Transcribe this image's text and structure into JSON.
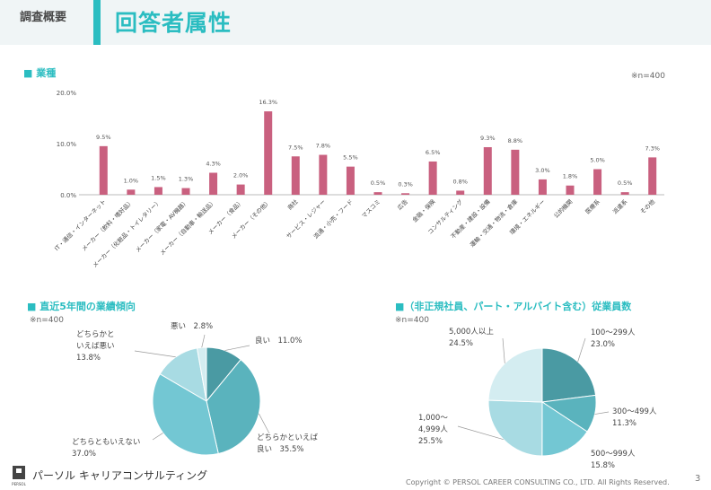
{
  "header": {
    "section_label": "調査概要",
    "title": "回答者属性"
  },
  "footer": {
    "logo_text": "パーソル キャリアコンサルティング",
    "logo_sub": "PERSOL",
    "copyright": "Copyright © PERSOL CAREER CONSULTING CO., LTD. All Rights Reserved.",
    "page": "3"
  },
  "colors": {
    "accent": "#2bbdc1",
    "bar": "#c9607f"
  },
  "blocks": {
    "industry": {
      "title": "■ 業種",
      "note": "※n=400"
    },
    "performance": {
      "title": "■ 直近5年間の業績傾向",
      "note": "※n=400"
    },
    "employees": {
      "title": "■（非正規社員、パート・アルバイト含む）従業員数",
      "note": "※n=400"
    }
  },
  "chart_data": [
    {
      "type": "bar",
      "categories": [
        "IT・通信・インターネット",
        "メーカー（飲料・嗜好品）",
        "メーカー（化粧品・トイレタリー）",
        "メーカー（家電・AV機器）",
        "メーカー（自動車・輸送品）",
        "メーカー（食品）",
        "メーカー（その他）",
        "商社",
        "サービス・レジャー",
        "流通・小売・フード",
        "マスコミ",
        "広告",
        "金融・保険",
        "コンサルティング",
        "不動産・建設・設備",
        "運輸・交通・物流・倉庫",
        "環境・エネルギー",
        "公的機関",
        "医療系",
        "派遣系",
        "その他"
      ],
      "values": [
        9.5,
        1.0,
        1.5,
        1.3,
        4.3,
        2.0,
        16.3,
        7.5,
        7.8,
        5.5,
        0.5,
        0.3,
        6.5,
        0.8,
        9.3,
        8.8,
        3.0,
        1.8,
        5.0,
        0.5,
        7.3
      ],
      "value_labels": [
        "9.5%",
        "1.0%",
        "1.5%",
        "1.3%",
        "4.3%",
        "2.0%",
        "16.3%",
        "7.5%",
        "7.8%",
        "5.5%",
        "0.5%",
        "0.3%",
        "6.5%",
        "0.8%",
        "9.3%",
        "8.8%",
        "3.0%",
        "1.8%",
        "5.0%",
        "0.5%",
        "7.3%"
      ],
      "yticks": [
        "0.0%",
        "10.0%",
        "20.0%"
      ],
      "ylim": [
        0,
        20
      ],
      "grid": false
    },
    {
      "type": "pie",
      "labels": [
        "良い",
        "どちらかといえば良い",
        "どちらともいえない",
        "どちらかといえば悪い",
        "悪い"
      ],
      "values": [
        11.0,
        35.5,
        37.0,
        13.8,
        2.8
      ],
      "value_labels": [
        "11.0%",
        "35.5%",
        "37.0%",
        "13.8%",
        "2.8%"
      ],
      "colors": [
        "#4a9aa3",
        "#5ab3bd",
        "#73c7d3",
        "#a8dbe3",
        "#d4edf1"
      ]
    },
    {
      "type": "pie",
      "labels": [
        "100〜299人",
        "300〜499人",
        "500〜999人",
        "1,000〜4,999人",
        "5,000人以上"
      ],
      "values": [
        23.0,
        11.3,
        15.8,
        25.5,
        24.5
      ],
      "value_labels": [
        "23.0%",
        "11.3%",
        "15.8%",
        "25.5%",
        "24.5%"
      ],
      "colors": [
        "#4a9aa3",
        "#5ab3bd",
        "#73c7d3",
        "#a8dbe3",
        "#d4edf1"
      ]
    }
  ]
}
